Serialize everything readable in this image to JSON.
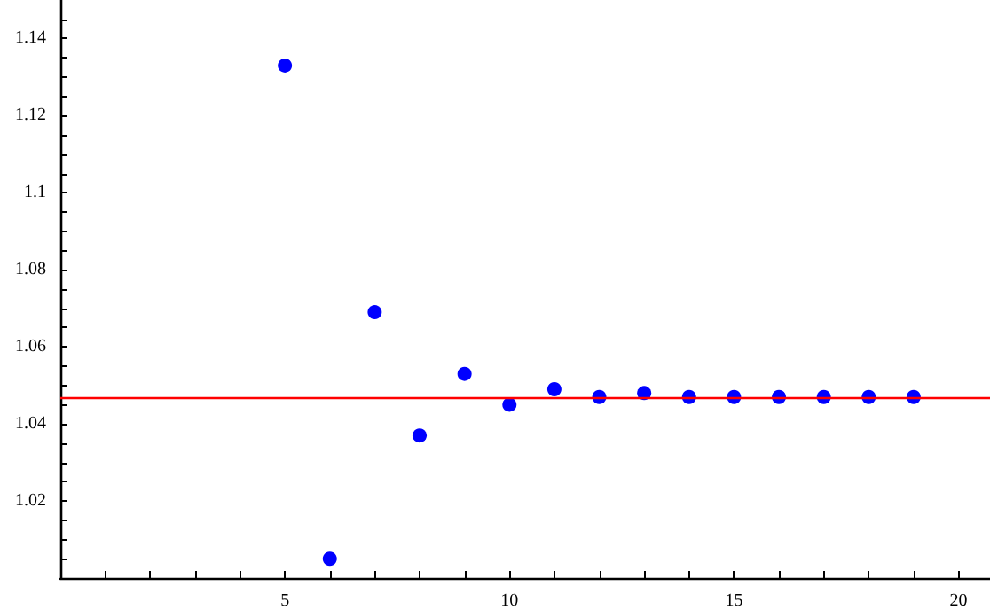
{
  "chart_data": {
    "type": "scatter",
    "x": [
      5,
      6,
      7,
      8,
      9,
      10,
      11,
      12,
      13,
      14,
      15,
      16,
      17,
      18,
      19
    ],
    "values": [
      1.133,
      1.005,
      1.069,
      1.037,
      1.053,
      1.045,
      1.049,
      1.047,
      1.048,
      1.047,
      1.047,
      1.047,
      1.047,
      1.047,
      1.047
    ],
    "color": "#0000ff",
    "marker": "circle",
    "xlim": [
      0,
      20.7
    ],
    "xticks": [
      {
        "value": 1,
        "label": null
      },
      {
        "value": 2,
        "label": null
      },
      {
        "value": 3,
        "label": null
      },
      {
        "value": 4,
        "label": null
      },
      5,
      {
        "value": 6,
        "label": null
      },
      {
        "value": 7,
        "label": null
      },
      {
        "value": 8,
        "label": null
      },
      {
        "value": 9,
        "label": null
      },
      10,
      {
        "value": 11,
        "label": null
      },
      {
        "value": 12,
        "label": null
      },
      {
        "value": 13,
        "label": null
      },
      {
        "value": 14,
        "label": null
      },
      15,
      {
        "value": 16,
        "label": null
      },
      {
        "value": 17,
        "label": null
      },
      {
        "value": 18,
        "label": null
      },
      {
        "value": 19,
        "label": null
      },
      20
    ],
    "ylim": [
      1.0,
      1.15
    ],
    "yticks": [
      {
        "value": 1.005,
        "label": null
      },
      {
        "value": 1.01,
        "label": null
      },
      {
        "value": 1.015,
        "label": null
      },
      1.02,
      {
        "value": 1.025,
        "label": null
      },
      {
        "value": 1.03,
        "label": null
      },
      {
        "value": 1.035,
        "label": null
      },
      1.04,
      {
        "value": 1.045,
        "label": null
      },
      {
        "value": 1.05,
        "label": null
      },
      {
        "value": 1.055,
        "label": null
      },
      1.06,
      {
        "value": 1.065,
        "label": null
      },
      {
        "value": 1.07,
        "label": null
      },
      {
        "value": 1.075,
        "label": null
      },
      1.08,
      {
        "value": 1.085,
        "label": null
      },
      {
        "value": 1.09,
        "label": null
      },
      {
        "value": 1.095,
        "label": null
      },
      1.1,
      {
        "value": 1.105,
        "label": null
      },
      {
        "value": 1.11,
        "label": null
      },
      {
        "value": 1.115,
        "label": null
      },
      1.12,
      {
        "value": 1.125,
        "label": null
      },
      {
        "value": 1.13,
        "label": null
      },
      {
        "value": 1.135,
        "label": null
      },
      1.14,
      {
        "value": 1.145,
        "label": null
      }
    ],
    "ref_lines": [
      {
        "axis": "y",
        "value": 1.047,
        "color": "#ff0000",
        "line_style": "solid"
      }
    ],
    "grid": false
  }
}
